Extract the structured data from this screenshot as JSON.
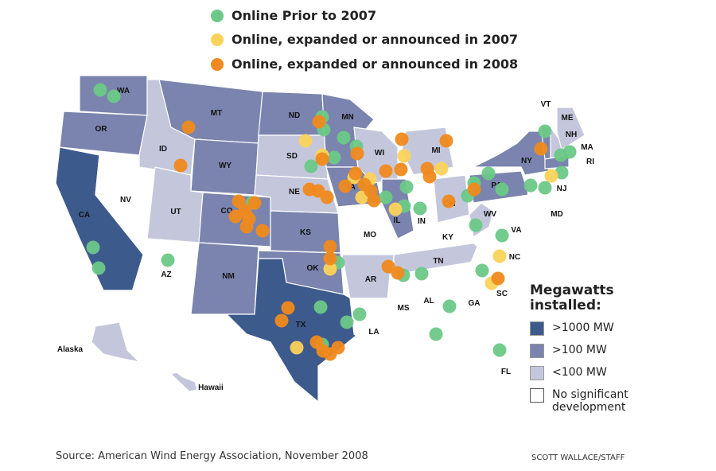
{
  "legend_dots": [
    {
      "label": "Online Prior to 2007",
      "color": "#6cc887"
    },
    {
      "label": "Online, expanded or announced in 2007",
      "color": "#fbd35a"
    },
    {
      "label": "Online, expanded or announced in 2008",
      "color": "#f08a1e"
    }
  ],
  "legend_mw": {
    "title": "Megawatts installed:",
    "items": [
      {
        "label": ">1000 MW",
        "color": "#3d5a8c"
      },
      {
        "label": ">100 MW",
        "color": "#7a84ae"
      },
      {
        "label": "<100 MW",
        "color": "#c4c7dc"
      },
      {
        "label": "No significant development",
        "color": "#ffffff"
      }
    ]
  },
  "states": {
    "WA": "high",
    "OR": "high",
    "CA": "vhigh",
    "NV": "none",
    "ID": "low",
    "MT": "high",
    "WY": "high",
    "UT": "low",
    "AZ": "none",
    "CO": "high",
    "NM": "high",
    "ND": "high",
    "SD": "low",
    "NE": "low",
    "KS": "high",
    "OK": "high",
    "TX": "vhigh",
    "MN": "high",
    "IA": "high",
    "MO": "none",
    "AR": "low",
    "LA": "none",
    "WI": "low",
    "MI": "low",
    "IL": "high",
    "IN": "none",
    "OH": "low",
    "KY": "none",
    "TN": "low",
    "MS": "none",
    "AL": "none",
    "GA": "none",
    "FL": "none",
    "SC": "none",
    "NC": "none",
    "VA": "none",
    "WV": "low",
    "PA": "high",
    "NY": "high",
    "MD": "none",
    "NJ": "none",
    "VT": "high",
    "NH": "low",
    "ME": "low",
    "MA": "high",
    "RI": "none",
    "Alaska": "low",
    "Hawaii": "low"
  },
  "source": "Source: American Wind Energy Association, November 2008",
  "credit": "SCOTT WALLACE/STAFF"
}
